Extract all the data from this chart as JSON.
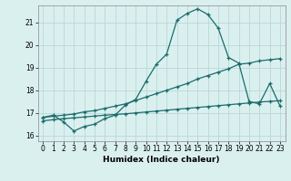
{
  "xlabel": "Humidex (Indice chaleur)",
  "background_color": "#daf0ef",
  "grid_color": "#b8d8d8",
  "line_color": "#1a6b6b",
  "xlim": [
    -0.5,
    23.5
  ],
  "ylim": [
    15.75,
    21.75
  ],
  "yticks": [
    16,
    17,
    18,
    19,
    20,
    21
  ],
  "xticks": [
    0,
    1,
    2,
    3,
    4,
    5,
    6,
    7,
    8,
    9,
    10,
    11,
    12,
    13,
    14,
    15,
    16,
    17,
    18,
    19,
    20,
    21,
    22,
    23
  ],
  "line1_x": [
    0,
    1,
    2,
    3,
    4,
    5,
    6,
    7,
    8,
    9,
    10,
    11,
    12,
    13,
    14,
    15,
    16,
    17,
    18,
    19,
    20,
    21,
    22,
    23
  ],
  "line1_y": [
    16.8,
    16.9,
    16.6,
    16.2,
    16.4,
    16.5,
    16.75,
    16.9,
    17.35,
    17.6,
    18.4,
    19.15,
    19.6,
    21.1,
    21.4,
    21.6,
    21.35,
    20.75,
    19.45,
    19.2,
    17.5,
    17.4,
    18.3,
    17.3
  ],
  "line2_x": [
    0,
    1,
    2,
    3,
    4,
    5,
    6,
    7,
    8,
    9,
    10,
    11,
    12,
    13,
    14,
    15,
    16,
    17,
    18,
    19,
    20,
    21,
    22,
    23
  ],
  "line2_y": [
    16.8,
    16.85,
    16.9,
    16.95,
    17.05,
    17.1,
    17.2,
    17.3,
    17.4,
    17.55,
    17.7,
    17.85,
    18.0,
    18.15,
    18.3,
    18.5,
    18.65,
    18.8,
    18.95,
    19.15,
    19.2,
    19.3,
    19.35,
    19.4
  ],
  "line3_x": [
    0,
    1,
    2,
    3,
    4,
    5,
    6,
    7,
    8,
    9,
    10,
    11,
    12,
    13,
    14,
    15,
    16,
    17,
    18,
    19,
    20,
    21,
    22,
    23
  ],
  "line3_y": [
    16.65,
    16.7,
    16.75,
    16.78,
    16.82,
    16.86,
    16.9,
    16.93,
    16.96,
    17.0,
    17.04,
    17.08,
    17.12,
    17.16,
    17.2,
    17.24,
    17.28,
    17.32,
    17.36,
    17.4,
    17.44,
    17.48,
    17.51,
    17.54
  ]
}
